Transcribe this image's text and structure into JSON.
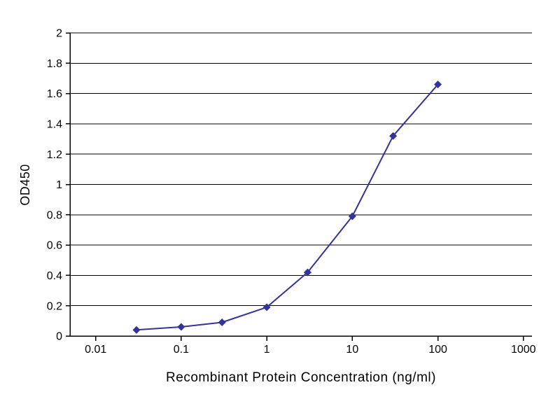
{
  "page": {
    "background_color": "#ffffff",
    "text_color": "#000000"
  },
  "chart_data": {
    "type": "line",
    "title": "",
    "xlabel": "Recombinant Protein Concentration (ng/ml)",
    "ylabel": "OD450",
    "x_scale": "log",
    "xlim": [
      0.01,
      1000
    ],
    "ylim": [
      0,
      2
    ],
    "x_ticks": [
      0.01,
      0.1,
      1,
      10,
      100,
      1000
    ],
    "x_tick_labels": [
      "0.01",
      "0.1",
      "1",
      "10",
      "100",
      "1000"
    ],
    "y_ticks": [
      0,
      0.2,
      0.4,
      0.6,
      0.8,
      1,
      1.2,
      1.4,
      1.6,
      1.8,
      2
    ],
    "y_tick_labels": [
      "0",
      "0.2",
      "0.4",
      "0.6",
      "0.8",
      "1",
      "1.2",
      "1.4",
      "1.6",
      "1.8",
      "2"
    ],
    "grid": "horizontal",
    "grid_color": "#000000",
    "axis_color": "#000000",
    "legend": "none",
    "series": [
      {
        "name": "OD450",
        "x": [
          0.03,
          0.1,
          0.3,
          1,
          3,
          10,
          30,
          100
        ],
        "y": [
          0.04,
          0.06,
          0.09,
          0.19,
          0.42,
          0.79,
          1.32,
          1.66
        ],
        "color": "#333399",
        "marker": "diamond"
      }
    ]
  }
}
